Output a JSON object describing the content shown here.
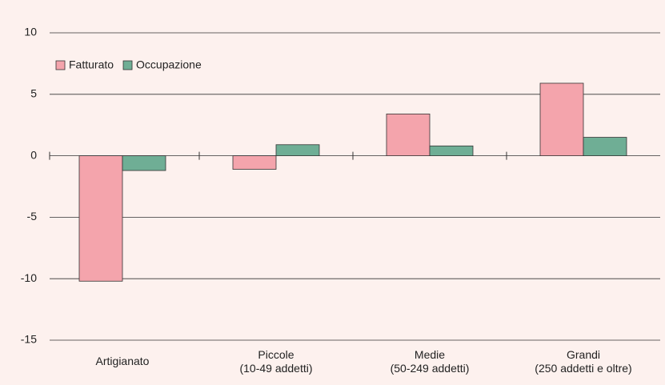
{
  "chart_data": {
    "type": "bar",
    "categories": [
      [
        "Artigianato"
      ],
      [
        "Piccole",
        "(10-49 addetti)"
      ],
      [
        "Medie",
        "(50-249 addetti)"
      ],
      [
        "Grandi",
        "(250 addetti e oltre)"
      ]
    ],
    "series": [
      {
        "name": "Fatturato",
        "color": "#f4a4ac",
        "values": [
          -10.2,
          -1.1,
          3.4,
          5.9
        ]
      },
      {
        "name": "Occupazione",
        "color": "#6fae95",
        "values": [
          -1.2,
          0.9,
          0.8,
          1.5
        ]
      }
    ],
    "ylim": [
      -15,
      10
    ],
    "yticks": [
      -15,
      -10,
      -5,
      0,
      5,
      10
    ],
    "grid": true,
    "legend": "top-left"
  }
}
